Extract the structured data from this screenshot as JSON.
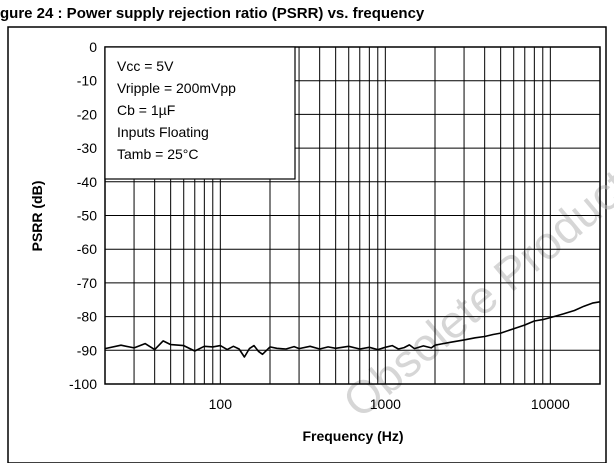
{
  "page": {
    "header_text": "gure 24 : Power supply rejection ratio (PSRR) vs. frequency"
  },
  "colors": {
    "frame": "#000000",
    "grid": "#000000",
    "curve": "#000000",
    "watermark": "#b5b5b5",
    "background": "#ffffff"
  },
  "watermark": "Obsolete Product(s) - Obsolete Product(s)",
  "chart_data": {
    "type": "line",
    "xlabel": "Frequency (Hz)",
    "ylabel": "PSRR (dB)",
    "xscale": "log",
    "xlim": [
      20,
      20000
    ],
    "ylim": [
      -100,
      0
    ],
    "grid": true,
    "x_tick_values": [
      100,
      1000,
      10000
    ],
    "x_tick_labels": [
      "100",
      "1000",
      "10000"
    ],
    "y_ticks": [
      0,
      -10,
      -20,
      -30,
      -40,
      -50,
      -60,
      -70,
      -80,
      -90,
      -100
    ],
    "y_tick_labels": [
      "0",
      "-10",
      "-20",
      "-30",
      "-40",
      "-50",
      "-60",
      "-70",
      "-80",
      "-90",
      "-100"
    ],
    "annotation_position": "top-left",
    "annotation_lines": [
      "Vcc = 5V",
      "Vripple = 200mVpp",
      "Cb = 1µF",
      "Inputs Floating",
      "Tamb = 25°C"
    ],
    "series": [
      {
        "x": [
          20,
          25,
          30,
          35,
          40,
          45,
          50,
          60,
          70,
          80,
          90,
          100,
          110,
          120,
          130,
          140,
          150,
          160,
          170,
          180,
          200,
          220,
          250,
          280,
          300,
          350,
          400,
          450,
          500,
          600,
          700,
          800,
          900,
          1000,
          1100,
          1200,
          1300,
          1400,
          1500,
          1700,
          1900,
          2000,
          2200,
          2500,
          3000,
          3500,
          4000,
          4500,
          5000,
          6000,
          7000,
          8000,
          9000,
          10000,
          12000,
          14000,
          16000,
          18000,
          20000
        ],
        "y": [
          -89.5,
          -88.5,
          -89.3,
          -88.0,
          -89.8,
          -87.2,
          -88.3,
          -88.6,
          -90.2,
          -88.8,
          -89.0,
          -88.6,
          -89.8,
          -88.8,
          -89.6,
          -92.0,
          -89.5,
          -88.6,
          -90.3,
          -91.2,
          -89.0,
          -89.4,
          -89.6,
          -88.9,
          -89.5,
          -88.8,
          -89.6,
          -89.0,
          -89.4,
          -88.8,
          -89.6,
          -89.1,
          -89.8,
          -89.1,
          -88.6,
          -89.6,
          -89.2,
          -88.4,
          -89.5,
          -88.7,
          -89.3,
          -88.5,
          -88.1,
          -87.6,
          -86.9,
          -86.3,
          -85.9,
          -85.3,
          -84.9,
          -83.6,
          -82.5,
          -81.3,
          -80.9,
          -80.3,
          -79.2,
          -78.2,
          -76.9,
          -76.0,
          -75.6
        ]
      }
    ]
  }
}
